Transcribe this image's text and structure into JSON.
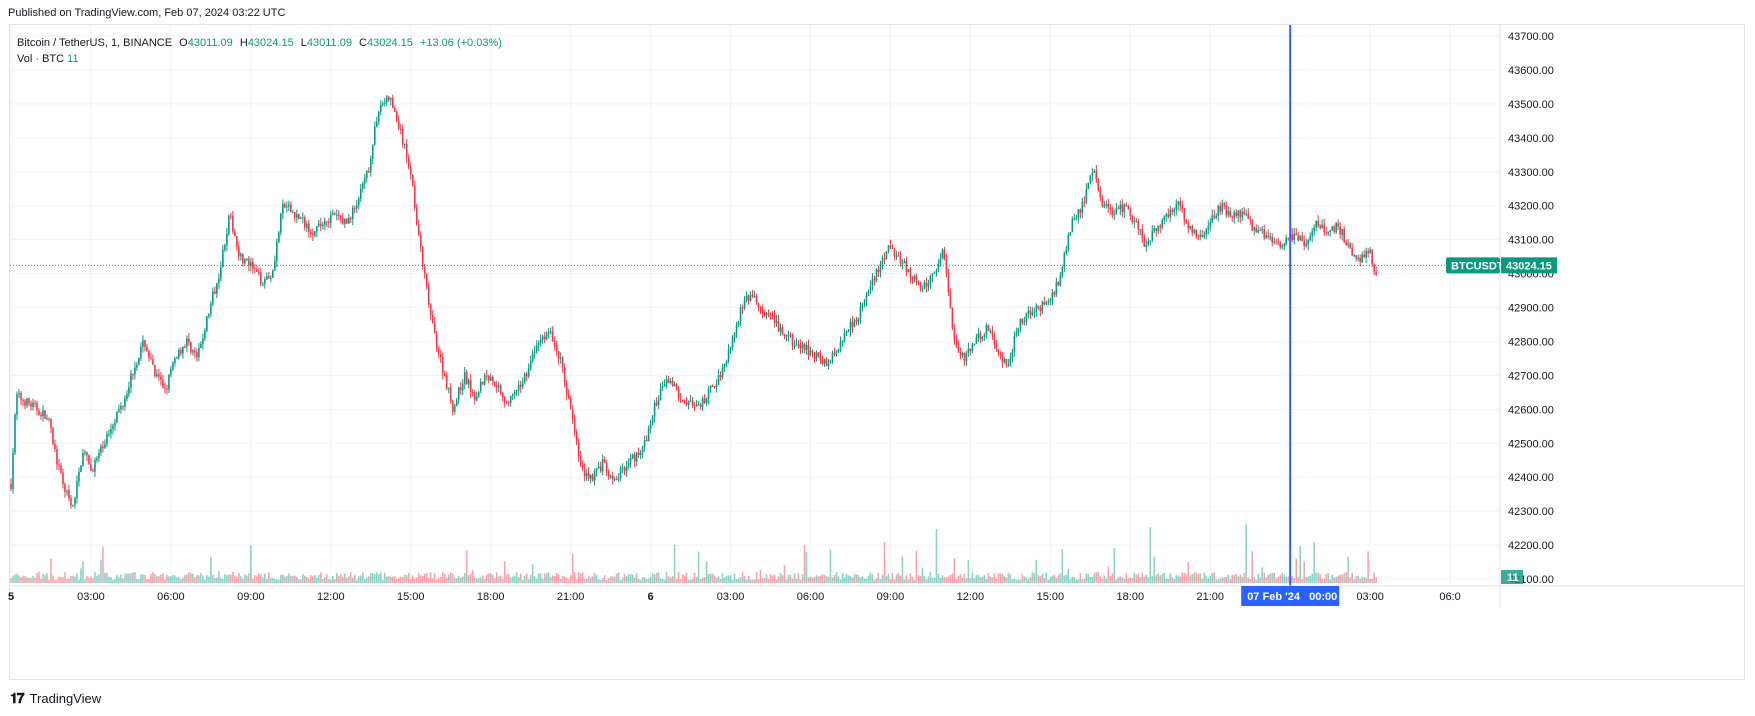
{
  "header": {
    "published": "Published on TradingView.com, Feb 07, 2024 03:22 UTC"
  },
  "legend": {
    "symbol": "Bitcoin / TetherUS, 1, BINANCE",
    "open_label": "O",
    "open": "43011.09",
    "high_label": "H",
    "high": "43024.15",
    "low_label": "L",
    "low": "43011.09",
    "close_label": "C",
    "close": "43024.15",
    "change": "+13.06 (+0.03%)",
    "vol_label": "Vol · BTC",
    "vol_value": "11"
  },
  "price_tag": {
    "symbol": "BTCUSDT",
    "value": "43024.15"
  },
  "volume_tag": "11",
  "crosshair_label": "07 Feb '24   00:00",
  "footer": {
    "brand": "TradingView"
  },
  "colors": {
    "up": "#089981",
    "down": "#f23645",
    "crosshair": "#2962ff",
    "grid": "#f0f3fa"
  },
  "chart_data": {
    "type": "candlestick",
    "symbol": "BTCUSDT",
    "interval": "1",
    "y_ticks": [
      42100,
      42200,
      42300,
      42400,
      42500,
      42600,
      42700,
      42800,
      42900,
      43000,
      43100,
      43200,
      43300,
      43400,
      43500,
      43600,
      43700
    ],
    "y_tick_labels": [
      "42100.00",
      "42200.00",
      "42300.00",
      "42400.00",
      "42500.00",
      "42600.00",
      "42700.00",
      "42800.00",
      "42900.00",
      "43000.00",
      "43100.00",
      "43200.00",
      "43300.00",
      "43400.00",
      "43500.00",
      "43600.00",
      "43700.00"
    ],
    "x_ticks": [
      {
        "hour": 0,
        "label": "5"
      },
      {
        "hour": 3,
        "label": "03:00"
      },
      {
        "hour": 6,
        "label": "06:00"
      },
      {
        "hour": 9,
        "label": "09:00"
      },
      {
        "hour": 12,
        "label": "12:00"
      },
      {
        "hour": 15,
        "label": "15:00"
      },
      {
        "hour": 18,
        "label": "18:00"
      },
      {
        "hour": 21,
        "label": "21:00"
      },
      {
        "hour": 24,
        "label": "6"
      },
      {
        "hour": 27,
        "label": "03:00"
      },
      {
        "hour": 30,
        "label": "06:00"
      },
      {
        "hour": 33,
        "label": "09:00"
      },
      {
        "hour": 36,
        "label": "12:00"
      },
      {
        "hour": 39,
        "label": "15:00"
      },
      {
        "hour": 42,
        "label": "18:00"
      },
      {
        "hour": 45,
        "label": "21:00"
      },
      {
        "hour": 51,
        "label": "03:00"
      },
      {
        "hour": 54,
        "label": "06:0"
      }
    ],
    "crosshair_hour": 48,
    "last_price": 43024.15,
    "price_path": [
      [
        0.0,
        42380
      ],
      [
        0.2,
        42640
      ],
      [
        0.6,
        42620
      ],
      [
        1.0,
        42600
      ],
      [
        1.4,
        42570
      ],
      [
        1.8,
        42420
      ],
      [
        2.3,
        42300
      ],
      [
        2.7,
        42480
      ],
      [
        3.0,
        42420
      ],
      [
        3.4,
        42480
      ],
      [
        3.8,
        42560
      ],
      [
        4.2,
        42620
      ],
      [
        4.6,
        42720
      ],
      [
        5.0,
        42800
      ],
      [
        5.4,
        42700
      ],
      [
        5.8,
        42660
      ],
      [
        6.2,
        42760
      ],
      [
        6.6,
        42800
      ],
      [
        7.0,
        42750
      ],
      [
        7.4,
        42880
      ],
      [
        7.8,
        43000
      ],
      [
        8.2,
        43170
      ],
      [
        8.6,
        43050
      ],
      [
        9.0,
        43020
      ],
      [
        9.4,
        42980
      ],
      [
        9.8,
        43000
      ],
      [
        10.2,
        43200
      ],
      [
        10.6,
        43180
      ],
      [
        11.0,
        43150
      ],
      [
        11.4,
        43120
      ],
      [
        11.8,
        43160
      ],
      [
        12.2,
        43170
      ],
      [
        12.6,
        43150
      ],
      [
        13.0,
        43210
      ],
      [
        13.4,
        43300
      ],
      [
        13.8,
        43490
      ],
      [
        14.2,
        43520
      ],
      [
        14.6,
        43420
      ],
      [
        15.0,
        43300
      ],
      [
        15.4,
        43050
      ],
      [
        15.8,
        42850
      ],
      [
        16.2,
        42720
      ],
      [
        16.6,
        42600
      ],
      [
        17.0,
        42700
      ],
      [
        17.4,
        42640
      ],
      [
        17.8,
        42700
      ],
      [
        18.2,
        42680
      ],
      [
        18.6,
        42620
      ],
      [
        19.0,
        42650
      ],
      [
        19.4,
        42720
      ],
      [
        19.8,
        42800
      ],
      [
        20.2,
        42830
      ],
      [
        20.6,
        42750
      ],
      [
        21.0,
        42600
      ],
      [
        21.4,
        42420
      ],
      [
        21.8,
        42400
      ],
      [
        22.2,
        42440
      ],
      [
        22.6,
        42380
      ],
      [
        23.0,
        42430
      ],
      [
        23.4,
        42460
      ],
      [
        23.8,
        42500
      ],
      [
        24.2,
        42620
      ],
      [
        24.6,
        42700
      ],
      [
        25.0,
        42650
      ],
      [
        25.4,
        42620
      ],
      [
        25.8,
        42600
      ],
      [
        26.2,
        42650
      ],
      [
        26.6,
        42700
      ],
      [
        27.0,
        42790
      ],
      [
        27.4,
        42900
      ],
      [
        27.8,
        42940
      ],
      [
        28.2,
        42880
      ],
      [
        28.6,
        42860
      ],
      [
        29.0,
        42820
      ],
      [
        29.4,
        42790
      ],
      [
        29.8,
        42780
      ],
      [
        30.2,
        42760
      ],
      [
        30.6,
        42730
      ],
      [
        31.0,
        42780
      ],
      [
        31.4,
        42840
      ],
      [
        31.8,
        42880
      ],
      [
        32.2,
        42950
      ],
      [
        32.6,
        43020
      ],
      [
        33.0,
        43080
      ],
      [
        33.4,
        43040
      ],
      [
        33.8,
        42990
      ],
      [
        34.2,
        42950
      ],
      [
        34.6,
        43000
      ],
      [
        35.0,
        43070
      ],
      [
        35.4,
        42800
      ],
      [
        35.8,
        42750
      ],
      [
        36.2,
        42800
      ],
      [
        36.6,
        42840
      ],
      [
        37.0,
        42780
      ],
      [
        37.4,
        42720
      ],
      [
        37.8,
        42850
      ],
      [
        38.2,
        42880
      ],
      [
        38.6,
        42900
      ],
      [
        39.0,
        42920
      ],
      [
        39.4,
        43000
      ],
      [
        39.8,
        43150
      ],
      [
        40.2,
        43200
      ],
      [
        40.6,
        43300
      ],
      [
        41.0,
        43200
      ],
      [
        41.4,
        43180
      ],
      [
        41.8,
        43200
      ],
      [
        42.2,
        43150
      ],
      [
        42.6,
        43080
      ],
      [
        43.0,
        43140
      ],
      [
        43.4,
        43170
      ],
      [
        43.8,
        43220
      ],
      [
        44.2,
        43130
      ],
      [
        44.6,
        43110
      ],
      [
        45.0,
        43150
      ],
      [
        45.4,
        43200
      ],
      [
        45.8,
        43170
      ],
      [
        46.2,
        43180
      ],
      [
        46.6,
        43140
      ],
      [
        47.0,
        43120
      ],
      [
        47.4,
        43080
      ],
      [
        47.8,
        43100
      ],
      [
        48.2,
        43110
      ],
      [
        48.6,
        43080
      ],
      [
        49.0,
        43150
      ],
      [
        49.4,
        43120
      ],
      [
        49.8,
        43140
      ],
      [
        50.2,
        43080
      ],
      [
        50.6,
        43040
      ],
      [
        51.0,
        43060
      ],
      [
        51.2,
        43000
      ],
      [
        51.3,
        43024
      ]
    ]
  }
}
